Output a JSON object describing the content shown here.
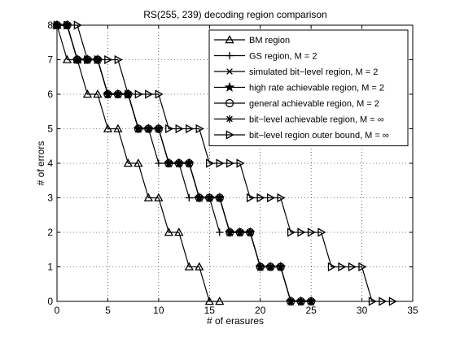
{
  "chart_data": {
    "type": "line",
    "title": "RS(255, 239) decoding region comparison",
    "xlabel": "# of erasures",
    "ylabel": "# of errors",
    "xlim": [
      0,
      35
    ],
    "ylim": [
      0,
      8
    ],
    "xticks": [
      0,
      5,
      10,
      15,
      20,
      25,
      30,
      35
    ],
    "yticks": [
      0,
      1,
      2,
      3,
      4,
      5,
      6,
      7,
      8
    ],
    "grid": "dotted",
    "legend_position": "top-right",
    "series": [
      {
        "name": "BM region",
        "marker": "triangle-up",
        "x": [
          0,
          1,
          2,
          3,
          4,
          5,
          6,
          7,
          8,
          9,
          10,
          11,
          12,
          13,
          14,
          15,
          16
        ],
        "y": [
          8,
          7,
          7,
          6,
          6,
          5,
          5,
          4,
          4,
          3,
          3,
          2,
          2,
          1,
          1,
          0,
          0
        ]
      },
      {
        "name": "GS region, M = 2",
        "marker": "plus",
        "x": [
          0,
          1,
          2,
          3,
          4,
          5,
          6,
          7,
          8,
          9,
          10,
          11,
          12,
          13,
          14,
          15,
          16
        ],
        "y": [
          8,
          8,
          7,
          7,
          7,
          6,
          6,
          6,
          5,
          5,
          4,
          4,
          4,
          3,
          3,
          3,
          2
        ]
      },
      {
        "name": "simulated bit−level region, M = 2",
        "marker": "x",
        "x": [
          0,
          1,
          2,
          3,
          4,
          5,
          6,
          7,
          8,
          9,
          10,
          11,
          12,
          13,
          14,
          15,
          16,
          17,
          18,
          19,
          20,
          21,
          22,
          23,
          24,
          25
        ],
        "y": [
          8,
          8,
          7,
          7,
          7,
          6,
          6,
          6,
          5,
          5,
          5,
          4,
          4,
          4,
          3,
          3,
          3,
          2,
          2,
          2,
          1,
          1,
          1,
          0,
          0,
          0
        ]
      },
      {
        "name": "high rate achievable region, M = 2",
        "marker": "star",
        "x": [
          0,
          1,
          2,
          3,
          4,
          5,
          6,
          7,
          8,
          9,
          10,
          11,
          12,
          13,
          14,
          15,
          16,
          17,
          18,
          19,
          20,
          21,
          22,
          23,
          24,
          25
        ],
        "y": [
          8,
          8,
          7,
          7,
          7,
          6,
          6,
          6,
          5,
          5,
          5,
          4,
          4,
          4,
          3,
          3,
          3,
          2,
          2,
          2,
          1,
          1,
          1,
          0,
          0,
          0
        ]
      },
      {
        "name": "general achievable region, M = 2",
        "marker": "circle",
        "x": [
          0,
          1,
          2,
          3,
          4,
          5,
          6,
          7,
          8,
          9,
          10,
          11,
          12,
          13,
          14,
          15,
          16,
          17,
          18,
          19,
          20,
          21,
          22,
          23,
          24,
          25
        ],
        "y": [
          8,
          8,
          7,
          7,
          7,
          6,
          6,
          6,
          5,
          5,
          5,
          4,
          4,
          4,
          3,
          3,
          3,
          2,
          2,
          2,
          1,
          1,
          1,
          0,
          0,
          0
        ]
      },
      {
        "name": "bit−level achievable region, M = ∞",
        "marker": "asterisk",
        "x": [
          0,
          1,
          2,
          3,
          4,
          5,
          6,
          7,
          8,
          9,
          10,
          11,
          12,
          13,
          14,
          15,
          16,
          17,
          18,
          19,
          20,
          21,
          22,
          23,
          24,
          25
        ],
        "y": [
          8,
          8,
          7,
          7,
          7,
          6,
          6,
          6,
          5,
          5,
          5,
          4,
          4,
          4,
          3,
          3,
          3,
          2,
          2,
          2,
          1,
          1,
          1,
          0,
          0,
          0
        ]
      },
      {
        "name": "bit−level region outer bound, M = ∞",
        "marker": "triangle-right",
        "x": [
          0,
          1,
          2,
          3,
          4,
          5,
          6,
          7,
          8,
          9,
          10,
          11,
          12,
          13,
          14,
          15,
          16,
          17,
          18,
          19,
          20,
          21,
          22,
          23,
          24,
          25,
          26,
          27,
          28,
          29,
          30,
          31,
          32,
          33
        ],
        "y": [
          8,
          8,
          8,
          7,
          7,
          7,
          7,
          6,
          6,
          6,
          6,
          5,
          5,
          5,
          5,
          4,
          4,
          4,
          4,
          3,
          3,
          3,
          3,
          2,
          2,
          2,
          2,
          1,
          1,
          1,
          1,
          0,
          0,
          0
        ]
      }
    ]
  }
}
